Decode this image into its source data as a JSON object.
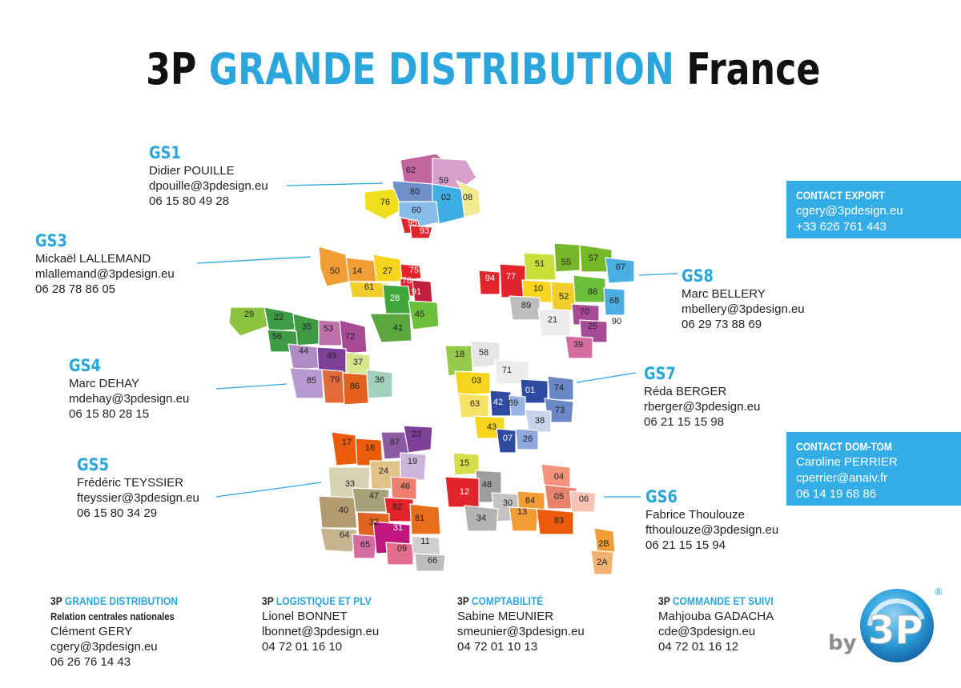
{
  "title": {
    "part1": "3P",
    "part2": "GRANDE DISTRIBUTION",
    "part3": "France"
  },
  "regions": [
    {
      "code": "GS1",
      "name": "Didier POUILLE",
      "email": "dpouille@3pdesign.eu",
      "phone": "06 15 80 49 28",
      "departments": [
        "62",
        "59",
        "80",
        "02",
        "08",
        "76",
        "60",
        "95",
        "93"
      ]
    },
    {
      "code": "GS3",
      "name": "Mickaël LALLEMAND",
      "email": "mlallemand@3pdesign.eu",
      "phone": "06 28 78 86 05",
      "departments": [
        "50",
        "14",
        "27",
        "75",
        "78",
        "61",
        "91",
        "28",
        "45",
        "41"
      ]
    },
    {
      "code": "GS4",
      "name": "Marc DEHAY",
      "email": "mdehay@3pdesign.eu",
      "phone": "06 15 80 28 15",
      "departments": [
        "29",
        "22",
        "35",
        "53",
        "72",
        "56",
        "44",
        "49",
        "37",
        "85",
        "79",
        "86",
        "36"
      ]
    },
    {
      "code": "GS5",
      "name": "Frédéric TEYSSIER",
      "email": "fteyssier@3pdesign.eu",
      "phone": "06 15 80 34 29",
      "departments": [
        "17",
        "16",
        "87",
        "23",
        "24",
        "19",
        "33",
        "47",
        "46",
        "40",
        "82",
        "32",
        "81",
        "64",
        "65",
        "31",
        "09",
        "11",
        "66"
      ]
    },
    {
      "code": "GS6",
      "name": "Fabrice Thoulouze",
      "email": "fthoulouze@3pdesign.eu",
      "phone": "06 21 15 15 94",
      "departments": [
        "15",
        "48",
        "12",
        "30",
        "84",
        "04",
        "05",
        "06",
        "34",
        "13",
        "83",
        "2B",
        "2A"
      ]
    },
    {
      "code": "GS7",
      "name": "Réda BERGER",
      "email": "rberger@3pdesign.eu",
      "phone": "06 21 15 15 98",
      "departments": [
        "18",
        "58",
        "71",
        "03",
        "01",
        "74",
        "63",
        "42",
        "69",
        "73",
        "38",
        "43",
        "07",
        "26"
      ]
    },
    {
      "code": "GS8",
      "name": "Marc BELLERY",
      "email": "mbellery@3pdesign.eu",
      "phone": "06 29 73 88 69",
      "departments": [
        "51",
        "55",
        "57",
        "67",
        "94",
        "77",
        "10",
        "52",
        "88",
        "68",
        "89",
        "70",
        "90",
        "21",
        "25",
        "39"
      ]
    }
  ],
  "contact_export": {
    "heading": "CONTACT EXPORT",
    "email": "cgery@3pdesign.eu",
    "phone": "+33 626 761 443"
  },
  "contact_domtom": {
    "heading": "CONTACT DOM-TOM",
    "name": "Caroline PERRIER",
    "email": "cperrier@anaiv.fr",
    "phone": "06 14 19 68 86"
  },
  "footer": [
    {
      "head_a": "3P",
      "head_b": "GRANDE DISTRIBUTION",
      "sub": "Relation centrales nationales",
      "name": "Clément GERY",
      "email": "cgery@3pdesign.eu",
      "phone": "06 26 76 14 43"
    },
    {
      "head_a": "3P",
      "head_b": "LOGISTIQUE ET PLV",
      "sub": "",
      "name": "Lionel BONNET",
      "email": "lbonnet@3pdesign.eu",
      "phone": "04 72 01 16 10"
    },
    {
      "head_a": "3P",
      "head_b": "COMPTABILITÉ",
      "sub": "",
      "name": "Sabine MEUNIER",
      "email": "smeunier@3pdesign.eu",
      "phone": "04 72 01 10 13"
    },
    {
      "head_a": "3P",
      "head_b": "COMMANDE ET SUIVI",
      "sub": "",
      "name": "Mahjouba GADACHA",
      "email": "cde@3pdesign.eu",
      "phone": "04 72 01 16 12"
    }
  ],
  "logo": {
    "prefix": "by",
    "mark": "3P",
    "registered": "®"
  },
  "colors": {
    "accent": "#2aa6dd",
    "box": "#34ade6",
    "title": "#111111"
  }
}
